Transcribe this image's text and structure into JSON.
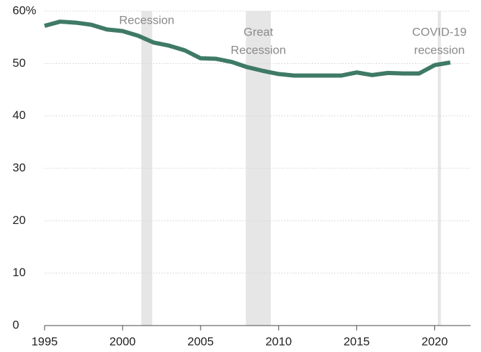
{
  "chart_data": {
    "type": "line",
    "x": [
      1995,
      1996,
      1997,
      1998,
      1999,
      2000,
      2001,
      2002,
      2003,
      2004,
      2005,
      2006,
      2007,
      2008,
      2009,
      2010,
      2011,
      2012,
      2013,
      2014,
      2015,
      2016,
      2017,
      2018,
      2019,
      2020,
      2021
    ],
    "series": [
      {
        "color": "#3f7a66",
        "values": [
          57.2,
          58.0,
          57.8,
          57.4,
          56.5,
          56.2,
          55.3,
          54.0,
          53.4,
          52.5,
          51.0,
          50.9,
          50.3,
          49.3,
          48.6,
          48.0,
          47.7,
          47.7,
          47.7,
          47.7,
          48.3,
          47.8,
          48.2,
          48.1,
          48.1,
          49.7,
          50.2
        ]
      }
    ],
    "xlim": [
      1995,
      2022.3
    ],
    "xticks": [
      1995,
      2000,
      2005,
      2010,
      2015,
      2020
    ],
    "ylim": [
      0,
      60
    ],
    "yticks": [
      0,
      10,
      20,
      30,
      40,
      50,
      {
        "value": 60,
        "label": "60%"
      }
    ],
    "grid": true,
    "recessions": [
      {
        "start": 2001.2,
        "end": 2001.9,
        "label": [
          "Recession"
        ]
      },
      {
        "start": 2007.9,
        "end": 2009.5,
        "label": [
          "Great",
          "Recession"
        ]
      },
      {
        "start": 2020.2,
        "end": 2020.4,
        "label": [
          "COVID-19",
          "recession"
        ]
      }
    ],
    "band_color": "#e6e6e6"
  }
}
